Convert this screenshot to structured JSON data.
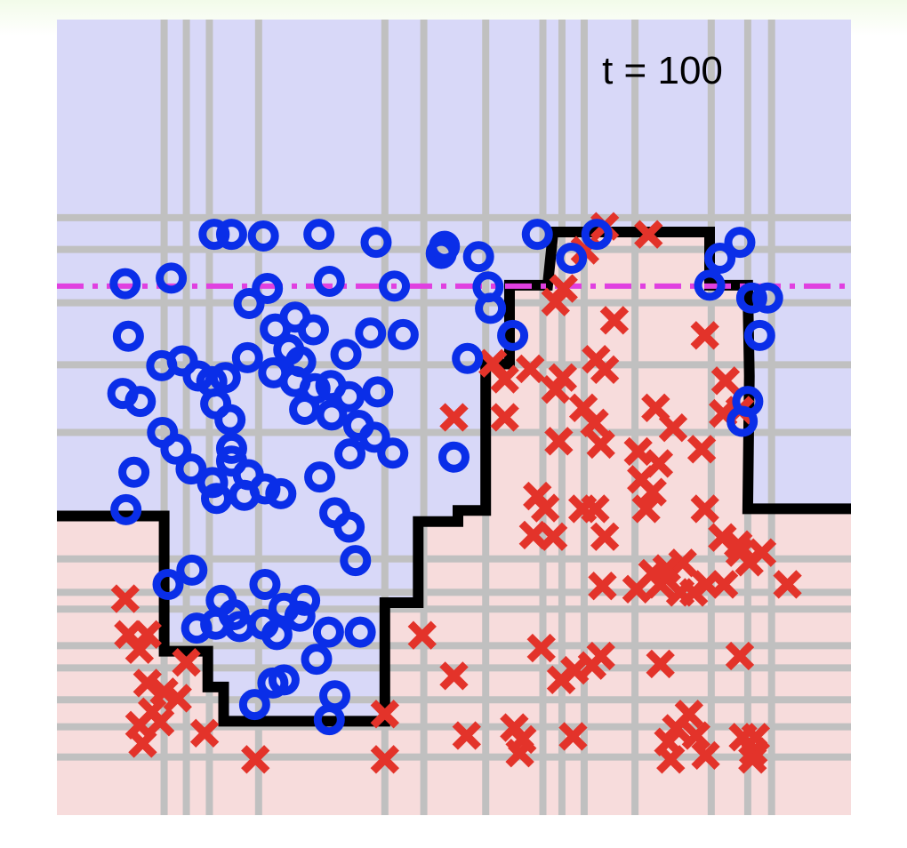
{
  "chart_data": {
    "type": "scatter",
    "annotation": "t = 100",
    "xlim": [
      0,
      1
    ],
    "ylim": [
      0,
      1
    ],
    "colors": {
      "class_o": "#0a2ee8",
      "class_x": "#e3332a",
      "region_o": "#d8d8f8",
      "region_x": "#f7dcdc",
      "grid": "#c0c0c0",
      "boundary": "#000000",
      "threshold": "#e040e0"
    },
    "threshold_line": {
      "y": 0.665,
      "style": "dash-dot"
    },
    "grid_x": [
      0.135,
      0.163,
      0.192,
      0.254,
      0.413,
      0.462,
      0.54,
      0.612,
      0.636,
      0.664,
      0.728,
      0.824,
      0.87,
      0.9
    ],
    "grid_y": [
      0.073,
      0.111,
      0.145,
      0.185,
      0.213,
      0.259,
      0.28,
      0.322,
      0.481,
      0.566,
      0.644,
      0.711,
      0.751
    ],
    "decision_boundary": [
      [
        0,
        0.376
      ],
      [
        0.135,
        0.376
      ],
      [
        0.135,
        0.206
      ],
      [
        0.19,
        0.206
      ],
      [
        0.19,
        0.161
      ],
      [
        0.21,
        0.161
      ],
      [
        0.21,
        0.118
      ],
      [
        0.413,
        0.118
      ],
      [
        0.413,
        0.267
      ],
      [
        0.455,
        0.267
      ],
      [
        0.455,
        0.369
      ],
      [
        0.505,
        0.369
      ],
      [
        0.505,
        0.383
      ],
      [
        0.54,
        0.383
      ],
      [
        0.54,
        0.567
      ],
      [
        0.57,
        0.567
      ],
      [
        0.57,
        0.666
      ],
      [
        0.618,
        0.666
      ],
      [
        0.625,
        0.733
      ],
      [
        0.822,
        0.733
      ],
      [
        0.822,
        0.666
      ],
      [
        0.87,
        0.666
      ],
      [
        0.872,
        0.552
      ],
      [
        0.87,
        0.385
      ],
      [
        1,
        0.385
      ]
    ],
    "series": [
      {
        "marker": "o",
        "points": [
          [
            0.198,
            0.73
          ],
          [
            0.22,
            0.73
          ],
          [
            0.26,
            0.728
          ],
          [
            0.33,
            0.73
          ],
          [
            0.402,
            0.72
          ],
          [
            0.488,
            0.715
          ],
          [
            0.484,
            0.706
          ],
          [
            0.531,
            0.702
          ],
          [
            0.605,
            0.73
          ],
          [
            0.68,
            0.73
          ],
          [
            0.86,
            0.72
          ],
          [
            0.835,
            0.7
          ],
          [
            0.648,
            0.7
          ],
          [
            0.086,
            0.668
          ],
          [
            0.144,
            0.675
          ],
          [
            0.265,
            0.662
          ],
          [
            0.242,
            0.643
          ],
          [
            0.343,
            0.671
          ],
          [
            0.425,
            0.665
          ],
          [
            0.543,
            0.664
          ],
          [
            0.546,
            0.637
          ],
          [
            0.574,
            0.603
          ],
          [
            0.822,
            0.666
          ],
          [
            0.875,
            0.65
          ],
          [
            0.895,
            0.65
          ],
          [
            0.885,
            0.603
          ],
          [
            0.09,
            0.602
          ],
          [
            0.083,
            0.53
          ],
          [
            0.105,
            0.52
          ],
          [
            0.132,
            0.565
          ],
          [
            0.158,
            0.571
          ],
          [
            0.178,
            0.552
          ],
          [
            0.195,
            0.545
          ],
          [
            0.2,
            0.517
          ],
          [
            0.212,
            0.55
          ],
          [
            0.24,
            0.575
          ],
          [
            0.275,
            0.611
          ],
          [
            0.3,
            0.626
          ],
          [
            0.292,
            0.585
          ],
          [
            0.323,
            0.61
          ],
          [
            0.307,
            0.57
          ],
          [
            0.273,
            0.556
          ],
          [
            0.3,
            0.545
          ],
          [
            0.325,
            0.536
          ],
          [
            0.312,
            0.51
          ],
          [
            0.345,
            0.54
          ],
          [
            0.346,
            0.503
          ],
          [
            0.368,
            0.526
          ],
          [
            0.364,
            0.579
          ],
          [
            0.395,
            0.606
          ],
          [
            0.436,
            0.604
          ],
          [
            0.404,
            0.532
          ],
          [
            0.38,
            0.49
          ],
          [
            0.4,
            0.475
          ],
          [
            0.423,
            0.455
          ],
          [
            0.5,
            0.45
          ],
          [
            0.517,
            0.574
          ],
          [
            0.87,
            0.52
          ],
          [
            0.863,
            0.495
          ],
          [
            0.133,
            0.481
          ],
          [
            0.15,
            0.46
          ],
          [
            0.169,
            0.435
          ],
          [
            0.218,
            0.497
          ],
          [
            0.22,
            0.461
          ],
          [
            0.22,
            0.445
          ],
          [
            0.241,
            0.428
          ],
          [
            0.196,
            0.418
          ],
          [
            0.097,
            0.431
          ],
          [
            0.087,
            0.384
          ],
          [
            0.201,
            0.398
          ],
          [
            0.236,
            0.402
          ],
          [
            0.262,
            0.41
          ],
          [
            0.331,
            0.425
          ],
          [
            0.35,
            0.38
          ],
          [
            0.368,
            0.362
          ],
          [
            0.376,
            0.32
          ],
          [
            0.369,
            0.454
          ],
          [
            0.282,
            0.404
          ],
          [
            0.14,
            0.29
          ],
          [
            0.17,
            0.308
          ],
          [
            0.262,
            0.29
          ],
          [
            0.286,
            0.26
          ],
          [
            0.312,
            0.27
          ],
          [
            0.306,
            0.25
          ],
          [
            0.26,
            0.24
          ],
          [
            0.23,
            0.237
          ],
          [
            0.207,
            0.27
          ],
          [
            0.176,
            0.235
          ],
          [
            0.2,
            0.24
          ],
          [
            0.223,
            0.252
          ],
          [
            0.277,
            0.227
          ],
          [
            0.342,
            0.23
          ],
          [
            0.382,
            0.23
          ],
          [
            0.327,
            0.196
          ],
          [
            0.272,
            0.166
          ],
          [
            0.286,
            0.17
          ],
          [
            0.249,
            0.139
          ],
          [
            0.35,
            0.15
          ],
          [
            0.343,
            0.12
          ]
        ]
      },
      {
        "marker": "x",
        "points": [
          [
            0.69,
            0.74
          ],
          [
            0.745,
            0.73
          ],
          [
            0.665,
            0.71
          ],
          [
            0.638,
            0.662
          ],
          [
            0.628,
            0.645
          ],
          [
            0.702,
            0.622
          ],
          [
            0.816,
            0.603
          ],
          [
            0.679,
            0.573
          ],
          [
            0.596,
            0.561
          ],
          [
            0.549,
            0.568
          ],
          [
            0.564,
            0.548
          ],
          [
            0.637,
            0.55
          ],
          [
            0.69,
            0.56
          ],
          [
            0.5,
            0.5
          ],
          [
            0.564,
            0.5
          ],
          [
            0.628,
            0.535
          ],
          [
            0.842,
            0.546
          ],
          [
            0.86,
            0.509
          ],
          [
            0.839,
            0.505
          ],
          [
            0.663,
            0.512
          ],
          [
            0.677,
            0.493
          ],
          [
            0.632,
            0.47
          ],
          [
            0.685,
            0.466
          ],
          [
            0.754,
            0.512
          ],
          [
            0.776,
            0.487
          ],
          [
            0.732,
            0.457
          ],
          [
            0.812,
            0.46
          ],
          [
            0.758,
            0.442
          ],
          [
            0.736,
            0.422
          ],
          [
            0.75,
            0.406
          ],
          [
            0.605,
            0.401
          ],
          [
            0.615,
            0.386
          ],
          [
            0.662,
            0.385
          ],
          [
            0.678,
            0.385
          ],
          [
            0.742,
            0.385
          ],
          [
            0.816,
            0.385
          ],
          [
            0.6,
            0.352
          ],
          [
            0.625,
            0.35
          ],
          [
            0.69,
            0.35
          ],
          [
            0.838,
            0.349
          ],
          [
            0.858,
            0.34
          ],
          [
            0.86,
            0.33
          ],
          [
            0.888,
            0.33
          ],
          [
            0.872,
            0.318
          ],
          [
            0.788,
            0.317
          ],
          [
            0.768,
            0.31
          ],
          [
            0.75,
            0.304
          ],
          [
            0.818,
            0.29
          ],
          [
            0.687,
            0.288
          ],
          [
            0.73,
            0.284
          ],
          [
            0.76,
            0.29
          ],
          [
            0.785,
            0.28
          ],
          [
            0.802,
            0.28
          ],
          [
            0.84,
            0.29
          ],
          [
            0.92,
            0.29
          ],
          [
            0.086,
            0.272
          ],
          [
            0.09,
            0.227
          ],
          [
            0.114,
            0.227
          ],
          [
            0.104,
            0.208
          ],
          [
            0.163,
            0.192
          ],
          [
            0.46,
            0.226
          ],
          [
            0.61,
            0.21
          ],
          [
            0.685,
            0.2
          ],
          [
            0.674,
            0.188
          ],
          [
            0.652,
            0.182
          ],
          [
            0.635,
            0.17
          ],
          [
            0.76,
            0.19
          ],
          [
            0.86,
            0.2
          ],
          [
            0.5,
            0.175
          ],
          [
            0.114,
            0.166
          ],
          [
            0.135,
            0.155
          ],
          [
            0.152,
            0.147
          ],
          [
            0.12,
            0.13
          ],
          [
            0.104,
            0.113
          ],
          [
            0.13,
            0.117
          ],
          [
            0.108,
            0.09
          ],
          [
            0.186,
            0.103
          ],
          [
            0.25,
            0.07
          ],
          [
            0.413,
            0.127
          ],
          [
            0.413,
            0.07
          ],
          [
            0.516,
            0.1
          ],
          [
            0.576,
            0.11
          ],
          [
            0.586,
            0.095
          ],
          [
            0.583,
            0.078
          ],
          [
            0.65,
            0.099
          ],
          [
            0.796,
            0.127
          ],
          [
            0.78,
            0.109
          ],
          [
            0.805,
            0.1
          ],
          [
            0.77,
            0.092
          ],
          [
            0.817,
            0.075
          ],
          [
            0.773,
            0.07
          ],
          [
            0.864,
            0.098
          ],
          [
            0.88,
            0.098
          ],
          [
            0.877,
            0.08
          ],
          [
            0.876,
            0.07
          ]
        ]
      }
    ]
  }
}
